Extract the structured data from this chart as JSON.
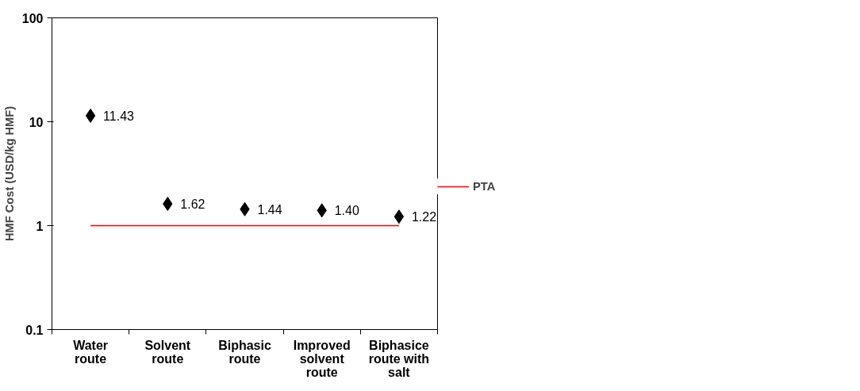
{
  "chart_data": {
    "type": "scatter",
    "ylabel": "HMF Cost (USD/kg HMF)",
    "categories": [
      "Water route",
      "Solvent route",
      "Biphasic route",
      "Improved solvent route",
      "Biphasice route with salt"
    ],
    "series": [
      {
        "type": "scatter",
        "color": "#000000",
        "marker": "diamond",
        "values": [
          11.43,
          1.62,
          1.44,
          1.4,
          1.22
        ],
        "value_labels": [
          "11.43",
          "1.62",
          "1.44",
          "1.40",
          "1.22"
        ]
      },
      {
        "type": "line",
        "name": "PTA",
        "color": "#ff0000",
        "line_style": "solid",
        "values": [
          1,
          1,
          1,
          1,
          1
        ]
      }
    ],
    "log": "y",
    "ylim": [
      0.1,
      100
    ],
    "yticks": [
      0.1,
      1,
      10,
      100
    ],
    "grid": false,
    "legend": "right"
  }
}
